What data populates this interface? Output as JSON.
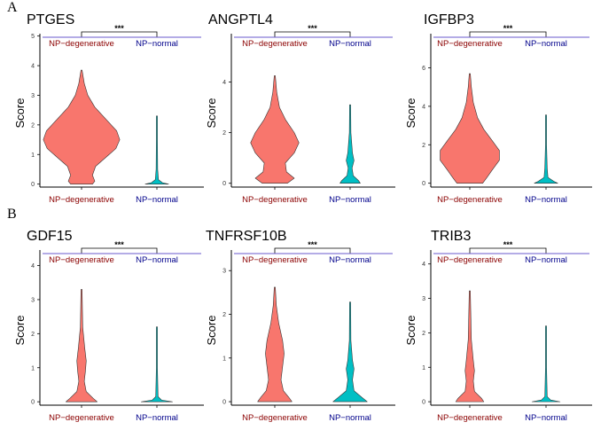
{
  "figure": {
    "panel_labels": [
      "A",
      "B"
    ]
  },
  "colors": {
    "degenerative_fill": "#f8766d",
    "normal_fill": "#00bfc4",
    "degenerative_text": "#8b0000",
    "normal_text": "#00008b",
    "divider_line": "#6a5acd"
  },
  "chart_data": [
    {
      "type": "violin",
      "title": "PTGES",
      "ylabel": "Score",
      "categories": [
        "NP−degenerative",
        "NP−normal"
      ],
      "ylim": [
        -0.1,
        4.9
      ],
      "yticks": [
        0,
        1,
        2,
        3,
        4,
        5
      ],
      "significance": "***",
      "series": [
        {
          "name": "NP−degenerative",
          "max": 3.85,
          "profile": [
            [
              0,
              0.28
            ],
            [
              0.1,
              0.34
            ],
            [
              0.3,
              0.28
            ],
            [
              0.6,
              0.36
            ],
            [
              0.9,
              0.62
            ],
            [
              1.2,
              0.88
            ],
            [
              1.5,
              0.98
            ],
            [
              1.8,
              0.9
            ],
            [
              2.2,
              0.62
            ],
            [
              2.6,
              0.34
            ],
            [
              3.0,
              0.16
            ],
            [
              3.4,
              0.07
            ],
            [
              3.85,
              0.0
            ]
          ]
        },
        {
          "name": "NP−normal",
          "max": 2.3,
          "profile": [
            [
              0,
              0.3
            ],
            [
              0.05,
              0.14
            ],
            [
              0.15,
              0.04
            ],
            [
              0.5,
              0.02
            ],
            [
              1.5,
              0.012
            ],
            [
              2.3,
              0.0
            ]
          ]
        }
      ]
    },
    {
      "type": "violin",
      "title": "ANGPTL4",
      "ylabel": "Score",
      "categories": [
        "NP−degenerative",
        "NP−normal"
      ],
      "ylim": [
        -0.15,
        5.7
      ],
      "yticks": [
        0,
        2,
        4
      ],
      "significance": "***",
      "series": [
        {
          "name": "NP−degenerative",
          "max": 4.25,
          "profile": [
            [
              0,
              0.32
            ],
            [
              0.2,
              0.5
            ],
            [
              0.45,
              0.3
            ],
            [
              0.8,
              0.27
            ],
            [
              1.2,
              0.5
            ],
            [
              1.6,
              0.62
            ],
            [
              2.0,
              0.5
            ],
            [
              2.5,
              0.28
            ],
            [
              3.0,
              0.12
            ],
            [
              3.6,
              0.05
            ],
            [
              4.25,
              0.0
            ]
          ]
        },
        {
          "name": "NP−normal",
          "max": 3.1,
          "profile": [
            [
              0,
              0.26
            ],
            [
              0.1,
              0.22
            ],
            [
              0.3,
              0.08
            ],
            [
              0.6,
              0.05
            ],
            [
              0.9,
              0.1
            ],
            [
              1.2,
              0.06
            ],
            [
              2.0,
              0.02
            ],
            [
              3.1,
              0.0
            ]
          ]
        }
      ]
    },
    {
      "type": "violin",
      "title": "IGFBP3",
      "ylabel": "Score",
      "categories": [
        "NP−degenerative",
        "NP−normal"
      ],
      "ylim": [
        -0.2,
        7.5
      ],
      "yticks": [
        0,
        2,
        4,
        6
      ],
      "significance": "***",
      "series": [
        {
          "name": "NP−degenerative",
          "max": 5.7,
          "profile": [
            [
              0,
              0.33
            ],
            [
              0.3,
              0.44
            ],
            [
              0.7,
              0.58
            ],
            [
              1.2,
              0.76
            ],
            [
              1.7,
              0.76
            ],
            [
              2.2,
              0.58
            ],
            [
              2.8,
              0.36
            ],
            [
              3.4,
              0.2
            ],
            [
              4.2,
              0.09
            ],
            [
              5.0,
              0.04
            ],
            [
              5.7,
              0.0
            ]
          ]
        },
        {
          "name": "NP−normal",
          "max": 3.55,
          "profile": [
            [
              0,
              0.3
            ],
            [
              0.1,
              0.2
            ],
            [
              0.3,
              0.05
            ],
            [
              0.8,
              0.03
            ],
            [
              2.0,
              0.012
            ],
            [
              3.55,
              0.0
            ]
          ]
        }
      ]
    },
    {
      "type": "violin",
      "title": "GDF15",
      "ylabel": "Score",
      "categories": [
        "NP−degenerative",
        "NP−normal"
      ],
      "ylim": [
        -0.1,
        4.3
      ],
      "yticks": [
        0,
        1,
        2,
        3,
        4
      ],
      "significance": "***",
      "series": [
        {
          "name": "NP−degenerative",
          "max": 3.3,
          "profile": [
            [
              0,
              0.4
            ],
            [
              0.1,
              0.3
            ],
            [
              0.3,
              0.12
            ],
            [
              0.6,
              0.07
            ],
            [
              0.9,
              0.1
            ],
            [
              1.2,
              0.12
            ],
            [
              1.6,
              0.08
            ],
            [
              2.2,
              0.03
            ],
            [
              3.3,
              0.0
            ]
          ]
        },
        {
          "name": "NP−normal",
          "max": 2.2,
          "profile": [
            [
              0,
              0.4
            ],
            [
              0.05,
              0.12
            ],
            [
              0.15,
              0.03
            ],
            [
              1.0,
              0.012
            ],
            [
              2.2,
              0.0
            ]
          ]
        }
      ]
    },
    {
      "type": "violin",
      "title": "TNFRSF10B",
      "ylabel": "Score",
      "categories": [
        "NP−degenerative",
        "NP−normal"
      ],
      "ylim": [
        -0.08,
        3.35
      ],
      "yticks": [
        0,
        1,
        2,
        3
      ],
      "significance": "***",
      "series": [
        {
          "name": "NP−degenerative",
          "max": 2.62,
          "profile": [
            [
              0,
              0.44
            ],
            [
              0.1,
              0.36
            ],
            [
              0.25,
              0.22
            ],
            [
              0.5,
              0.16
            ],
            [
              0.8,
              0.2
            ],
            [
              1.1,
              0.24
            ],
            [
              1.4,
              0.2
            ],
            [
              1.8,
              0.1
            ],
            [
              2.2,
              0.04
            ],
            [
              2.62,
              0.0
            ]
          ]
        },
        {
          "name": "NP−normal",
          "max": 2.28,
          "profile": [
            [
              0,
              0.44
            ],
            [
              0.1,
              0.3
            ],
            [
              0.25,
              0.1
            ],
            [
              0.5,
              0.06
            ],
            [
              0.75,
              0.1
            ],
            [
              0.95,
              0.06
            ],
            [
              1.4,
              0.02
            ],
            [
              2.28,
              0.0
            ]
          ]
        }
      ]
    },
    {
      "type": "violin",
      "title": "TRIB3",
      "ylabel": "Score",
      "categories": [
        "NP−degenerative",
        "NP−normal"
      ],
      "ylim": [
        -0.1,
        4.25
      ],
      "yticks": [
        0,
        1,
        2,
        3,
        4
      ],
      "significance": "***",
      "series": [
        {
          "name": "NP−degenerative",
          "max": 3.22,
          "profile": [
            [
              0,
              0.36
            ],
            [
              0.1,
              0.3
            ],
            [
              0.3,
              0.12
            ],
            [
              0.6,
              0.09
            ],
            [
              0.9,
              0.12
            ],
            [
              1.2,
              0.09
            ],
            [
              1.8,
              0.04
            ],
            [
              3.22,
              0.0
            ]
          ]
        },
        {
          "name": "NP−normal",
          "max": 2.2,
          "profile": [
            [
              0,
              0.36
            ],
            [
              0.05,
              0.12
            ],
            [
              0.15,
              0.03
            ],
            [
              1.0,
              0.01
            ],
            [
              2.2,
              0.0
            ]
          ]
        }
      ]
    }
  ]
}
